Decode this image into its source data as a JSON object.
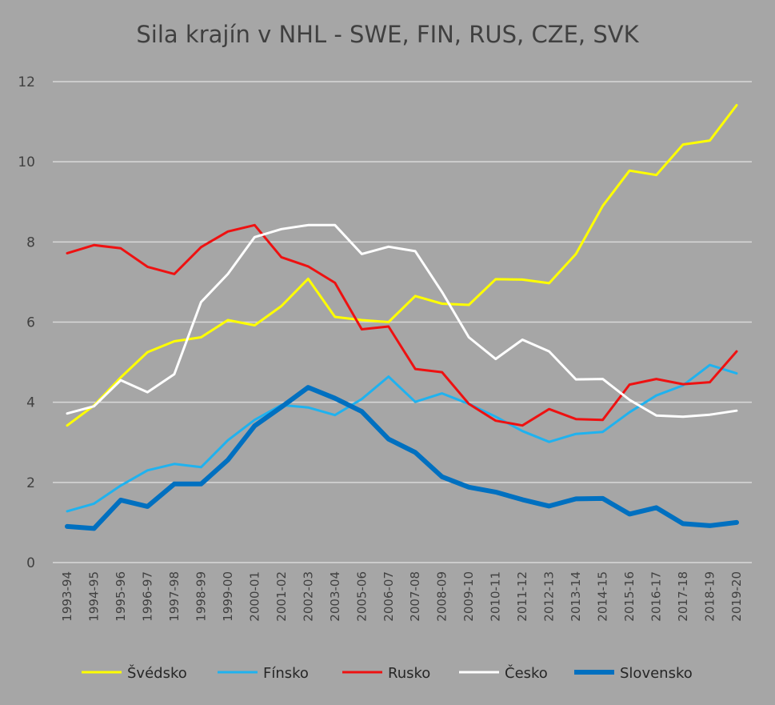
{
  "chart_data": {
    "type": "line",
    "title": "Sila krajín v NHL - SWE, FIN, RUS, CZE, SVK",
    "xlabel": "",
    "ylabel": "",
    "ylim": [
      0,
      12
    ],
    "yticks": [
      0,
      2,
      4,
      6,
      8,
      10,
      12
    ],
    "grid": true,
    "legend_position": "bottom",
    "categories": [
      "1993-94",
      "1994-95",
      "1995-96",
      "1996-97",
      "1997-98",
      "1998-99",
      "1999-00",
      "2000-01",
      "2001-02",
      "2002-03",
      "2003-04",
      "2005-06",
      "2006-07",
      "2007-08",
      "2008-09",
      "2009-10",
      "2010-11",
      "2011-12",
      "2012-13",
      "2013-14",
      "2014-15",
      "2015-16",
      "2016-17",
      "2017-18",
      "2018-19",
      "2019-20"
    ],
    "series": [
      {
        "name": "Švédsko",
        "color": "#ffff00",
        "values": [
          3.42,
          3.92,
          4.62,
          5.25,
          5.52,
          5.62,
          6.05,
          5.92,
          6.4,
          7.08,
          6.13,
          6.05,
          6.0,
          6.65,
          6.46,
          6.43,
          7.07,
          7.06,
          6.97,
          7.7,
          8.9,
          9.78,
          9.67,
          10.43,
          10.53,
          11.41
        ]
      },
      {
        "name": "Fínsko",
        "color": "#1fb2ef",
        "values": [
          1.28,
          1.47,
          1.92,
          2.3,
          2.46,
          2.38,
          3.05,
          3.56,
          3.93,
          3.87,
          3.68,
          4.08,
          4.64,
          4.01,
          4.22,
          3.96,
          3.64,
          3.28,
          3.01,
          3.21,
          3.26,
          3.75,
          4.17,
          4.42,
          4.93,
          4.72
        ]
      },
      {
        "name": "Rusko",
        "color": "#ee1111",
        "values": [
          7.72,
          7.92,
          7.84,
          7.38,
          7.2,
          7.87,
          8.26,
          8.42,
          7.62,
          7.39,
          6.98,
          5.82,
          5.89,
          4.83,
          4.75,
          3.96,
          3.54,
          3.42,
          3.83,
          3.58,
          3.56,
          4.44,
          4.58,
          4.45,
          4.5,
          5.27
        ]
      },
      {
        "name": "Česko",
        "color": "#ffffff",
        "values": [
          3.72,
          3.9,
          4.55,
          4.25,
          4.7,
          6.5,
          7.2,
          8.12,
          8.32,
          8.42,
          8.42,
          7.7,
          7.88,
          7.77,
          6.75,
          5.62,
          5.08,
          5.56,
          5.27,
          4.57,
          4.58,
          4.06,
          3.67,
          3.64,
          3.69,
          3.79
        ]
      },
      {
        "name": "Slovensko",
        "color": "#0070c0",
        "values": [
          0.9,
          0.85,
          1.56,
          1.4,
          1.96,
          1.96,
          2.56,
          3.41,
          3.88,
          4.37,
          4.1,
          3.77,
          3.08,
          2.75,
          2.14,
          1.88,
          1.76,
          1.57,
          1.41,
          1.59,
          1.6,
          1.21,
          1.37,
          0.97,
          0.92,
          1.0
        ]
      }
    ]
  }
}
